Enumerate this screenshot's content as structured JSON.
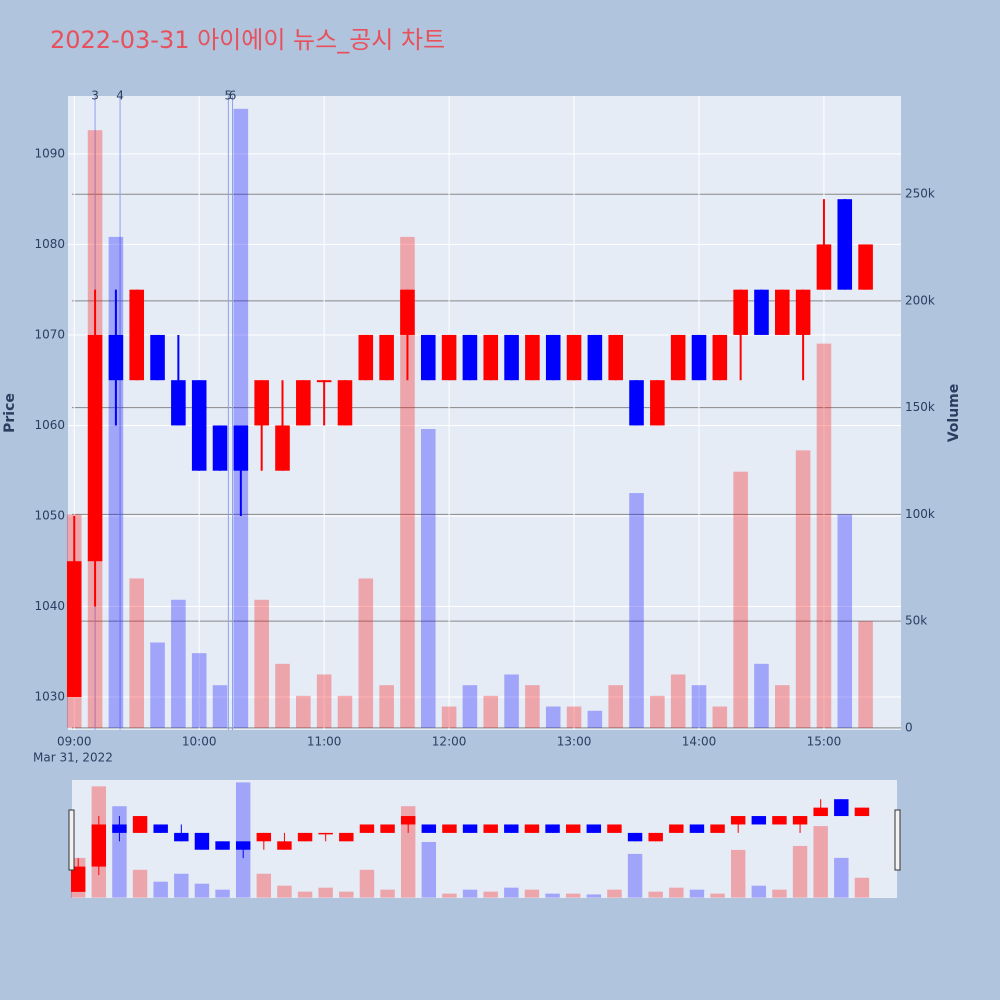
{
  "chart_data": {
    "type": "candlestick",
    "title": "2022-03-31 아이에이 뉴스_공시 차트",
    "y_label": "Price",
    "y2_label": "Volume",
    "x_date_label": "Mar 31, 2022",
    "up_color": "#ff0000",
    "down_color": "#0000ff",
    "x": [
      "09:00",
      "09:10",
      "09:20",
      "09:30",
      "09:40",
      "09:50",
      "10:00",
      "10:10",
      "10:20",
      "10:30",
      "10:40",
      "10:50",
      "11:00",
      "11:10",
      "11:20",
      "11:30",
      "11:40",
      "11:50",
      "12:00",
      "12:10",
      "12:20",
      "12:30",
      "12:40",
      "12:50",
      "13:00",
      "13:10",
      "13:20",
      "13:30",
      "13:40",
      "13:50",
      "14:00",
      "14:10",
      "14:20",
      "14:30",
      "14:40",
      "14:50",
      "15:00",
      "15:10",
      "15:20"
    ],
    "open": [
      1030,
      1045,
      1070,
      1065,
      1070,
      1065,
      1065,
      1060,
      1060,
      1060,
      1055,
      1060,
      1065,
      1060,
      1065,
      1065,
      1070,
      1070,
      1065,
      1070,
      1065,
      1070,
      1065,
      1070,
      1065,
      1070,
      1065,
      1065,
      1060,
      1065,
      1070,
      1065,
      1070,
      1075,
      1070,
      1070,
      1075,
      1085,
      1075
    ],
    "high": [
      1050,
      1075,
      1075,
      1075,
      1070,
      1070,
      1065,
      1060,
      1060,
      1065,
      1065,
      1065,
      1065,
      1065,
      1070,
      1070,
      1075,
      1070,
      1070,
      1070,
      1070,
      1070,
      1070,
      1070,
      1070,
      1070,
      1070,
      1065,
      1065,
      1070,
      1070,
      1070,
      1075,
      1075,
      1075,
      1075,
      1085,
      1085,
      1080
    ],
    "low": [
      1030,
      1040,
      1060,
      1065,
      1065,
      1060,
      1055,
      1055,
      1050,
      1055,
      1055,
      1060,
      1060,
      1060,
      1065,
      1065,
      1065,
      1065,
      1065,
      1065,
      1065,
      1065,
      1065,
      1065,
      1065,
      1065,
      1065,
      1060,
      1060,
      1065,
      1065,
      1065,
      1065,
      1070,
      1070,
      1065,
      1075,
      1075,
      1075
    ],
    "close": [
      1045,
      1070,
      1065,
      1075,
      1065,
      1060,
      1055,
      1055,
      1055,
      1065,
      1060,
      1065,
      1065,
      1065,
      1070,
      1070,
      1075,
      1065,
      1070,
      1065,
      1070,
      1065,
      1070,
      1065,
      1070,
      1065,
      1070,
      1060,
      1065,
      1070,
      1065,
      1070,
      1075,
      1070,
      1075,
      1075,
      1080,
      1075,
      1080
    ],
    "volume": [
      100000,
      280000,
      230000,
      70000,
      40000,
      60000,
      35000,
      20000,
      290000,
      60000,
      30000,
      15000,
      25000,
      15000,
      70000,
      20000,
      230000,
      140000,
      10000,
      20000,
      15000,
      25000,
      20000,
      10000,
      10000,
      8000,
      20000,
      110000,
      15000,
      25000,
      20000,
      10000,
      120000,
      30000,
      20000,
      130000,
      180000,
      100000,
      50000
    ],
    "annotations": [
      {
        "x": "09:10",
        "text": "3"
      },
      {
        "x": "09:22",
        "text": "4"
      },
      {
        "x": "10:14",
        "text": "5"
      },
      {
        "x": "10:16",
        "text": "6"
      }
    ],
    "xlim": [
      "08:57",
      "15:37"
    ],
    "xticks": [
      "09:00",
      "10:00",
      "11:00",
      "12:00",
      "13:00",
      "14:00",
      "15:00"
    ],
    "ylim": [
      1026.35,
      1096.4
    ],
    "yticks": [
      1030,
      1040,
      1050,
      1060,
      1070,
      1080,
      1090
    ],
    "y2lim": [
      -1000,
      296000
    ],
    "y2ticks": [
      0,
      {
        "value": 50000,
        "label": "50k"
      },
      {
        "value": 100000,
        "label": "100k"
      },
      {
        "value": 150000,
        "label": "150k"
      },
      {
        "value": 200000,
        "label": "200k"
      },
      {
        "value": 250000,
        "label": "250k"
      }
    ],
    "grid": true
  }
}
